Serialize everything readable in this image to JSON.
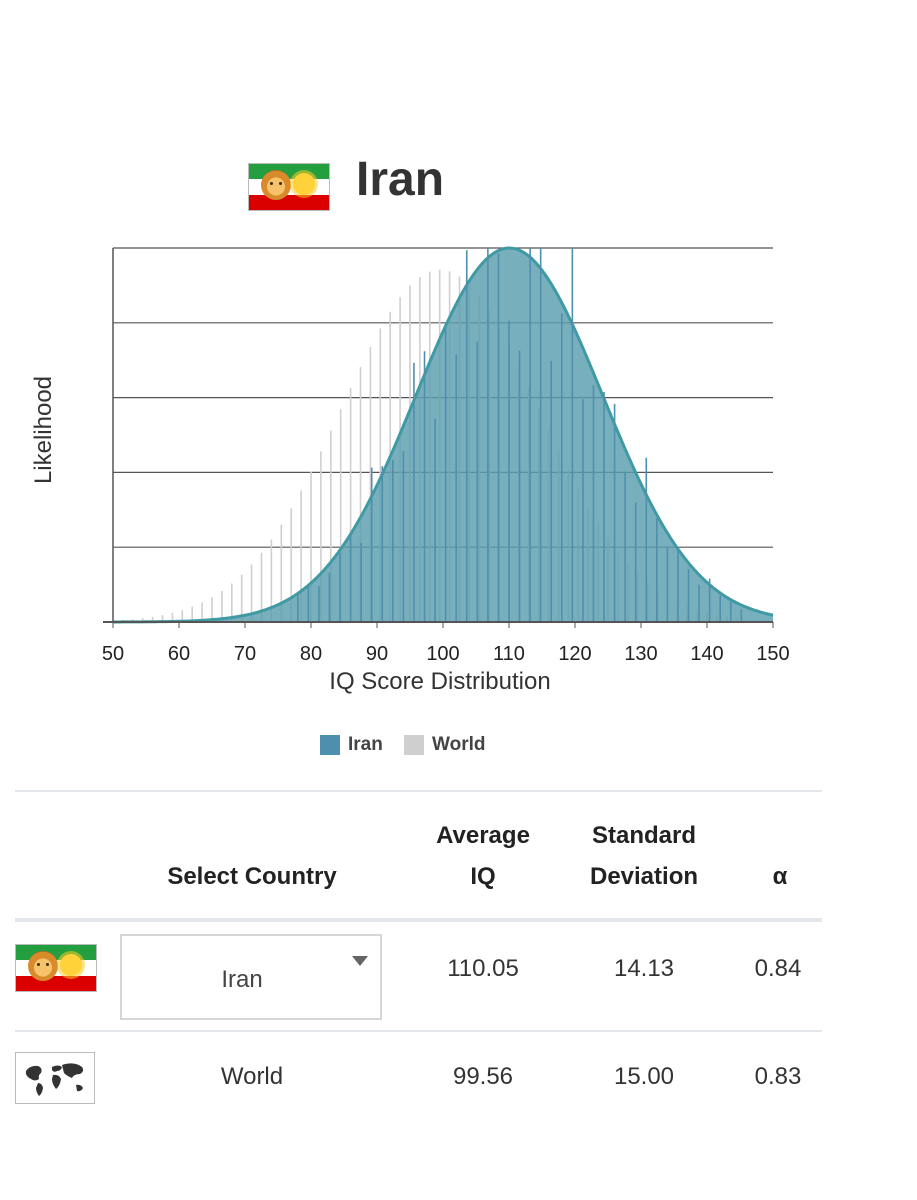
{
  "header": {
    "title": "Iran"
  },
  "chart_data": {
    "type": "area",
    "xlabel": "IQ Score Distribution",
    "ylabel": "Likelihood",
    "xlim": [
      50,
      150
    ],
    "x_ticks": [
      "50",
      "60",
      "70",
      "80",
      "90",
      "100",
      "110",
      "120",
      "130",
      "140",
      "150"
    ],
    "legend_position": "bottom-center",
    "grid": true,
    "series": [
      {
        "name": "Iran",
        "mean": 110.05,
        "sd": 14.13,
        "color": "#5a9eae",
        "bar_color": "#4f8fae"
      },
      {
        "name": "World",
        "mean": 99.56,
        "sd": 15.0,
        "color": "#cfcfcf"
      }
    ]
  },
  "legend": {
    "iran": "Iran",
    "world": "World"
  },
  "table": {
    "headers": {
      "select_country": "Select Country",
      "avg_line1": "Average",
      "avg_line2": "IQ",
      "sd_line1": "Standard",
      "sd_line2": "Deviation",
      "alpha": "α"
    },
    "rows": [
      {
        "country": "Iran",
        "avg": "110.05",
        "sd": "14.13",
        "alpha": "0.84"
      },
      {
        "country": "World",
        "avg": "99.56",
        "sd": "15.00",
        "alpha": "0.83"
      }
    ]
  }
}
